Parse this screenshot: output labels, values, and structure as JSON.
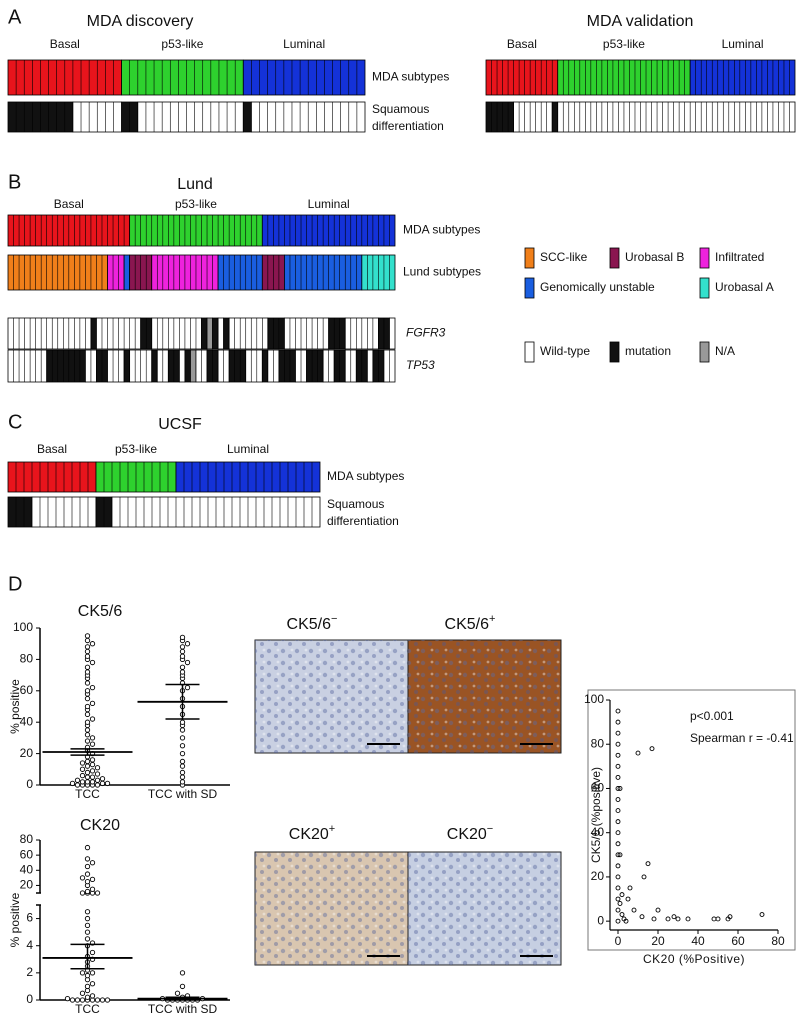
{
  "panel_labels": [
    "A",
    "B",
    "C",
    "D"
  ],
  "heatmaps": [
    {
      "title": "MDA discovery",
      "groups": [
        "Basal",
        "p53-like",
        "Luminal"
      ],
      "rows": [
        {
          "label": "MDA subtypes",
          "runs": [
            {
              "color": "#e8141c",
              "count": 14
            },
            {
              "color": "#2ed12e",
              "count": 15
            },
            {
              "color": "#1432d8",
              "count": 15
            }
          ]
        },
        {
          "label": [
            "Squamous",
            "differentiation"
          ],
          "runs": [
            {
              "color": "#111111",
              "count": 8
            },
            {
              "color": "#ffffff",
              "count": 6
            },
            {
              "color": "#111111",
              "count": 2
            },
            {
              "color": "#ffffff",
              "count": 13
            },
            {
              "color": "#111111",
              "count": 1
            },
            {
              "color": "#ffffff",
              "count": 14
            }
          ]
        }
      ]
    },
    {
      "title": "MDA validation",
      "groups": [
        "Basal",
        "p53-like",
        "Luminal"
      ],
      "rows": [
        {
          "runs": [
            {
              "color": "#e8141c",
              "count": 13
            },
            {
              "color": "#2ed12e",
              "count": 24
            },
            {
              "color": "#1432d8",
              "count": 19
            }
          ]
        },
        {
          "runs": [
            {
              "color": "#111111",
              "count": 5
            },
            {
              "color": "#ffffff",
              "count": 7
            },
            {
              "color": "#111111",
              "count": 1
            },
            {
              "color": "#ffffff",
              "count": 43
            }
          ]
        }
      ]
    },
    {
      "title": "Lund",
      "groups": [
        "Basal",
        "p53-like",
        "Luminal"
      ],
      "rows": [
        {
          "label": "MDA subtypes",
          "runs": [
            {
              "color": "#e8141c",
              "count": 22
            },
            {
              "color": "#2ed12e",
              "count": 24
            },
            {
              "color": "#1432d8",
              "count": 24
            }
          ]
        },
        {
          "label": "Lund subtypes",
          "runs": [
            {
              "color": "#f07f1a",
              "count": 18
            },
            {
              "color": "#ee22dd",
              "count": 3
            },
            {
              "color": "#1a5ee0",
              "count": 1
            },
            {
              "color": "#8a1650",
              "count": 4
            },
            {
              "color": "#ee22dd",
              "count": 12
            },
            {
              "color": "#1a5ee0",
              "count": 8
            },
            {
              "color": "#8a1650",
              "count": 4
            },
            {
              "color": "#1a5ee0",
              "count": 14
            },
            {
              "color": "#33e0cc",
              "count": 6
            }
          ]
        },
        {
          "label": "FGFR3",
          "italic": true,
          "runs": [
            {
              "color": "#ffffff",
              "count": 15
            },
            {
              "color": "#111111",
              "count": 1
            },
            {
              "color": "#ffffff",
              "count": 8
            },
            {
              "color": "#111111",
              "count": 2
            },
            {
              "color": "#ffffff",
              "count": 9
            },
            {
              "color": "#111111",
              "count": 1
            },
            {
              "color": "#999999",
              "count": 1
            },
            {
              "color": "#111111",
              "count": 1
            },
            {
              "color": "#ffffff",
              "count": 1
            },
            {
              "color": "#111111",
              "count": 1
            },
            {
              "color": "#ffffff",
              "count": 7
            },
            {
              "color": "#111111",
              "count": 3
            },
            {
              "color": "#ffffff",
              "count": 8
            },
            {
              "color": "#111111",
              "count": 3
            },
            {
              "color": "#ffffff",
              "count": 6
            },
            {
              "color": "#111111",
              "count": 2
            },
            {
              "color": "#ffffff",
              "count": 1
            }
          ]
        },
        {
          "label": "TP53",
          "italic": true,
          "runs": [
            {
              "color": "#ffffff",
              "count": 7
            },
            {
              "color": "#111111",
              "count": 7
            },
            {
              "color": "#ffffff",
              "count": 2
            },
            {
              "color": "#111111",
              "count": 2
            },
            {
              "color": "#ffffff",
              "count": 3
            },
            {
              "color": "#111111",
              "count": 1
            },
            {
              "color": "#ffffff",
              "count": 4
            },
            {
              "color": "#111111",
              "count": 1
            },
            {
              "color": "#ffffff",
              "count": 2
            },
            {
              "color": "#111111",
              "count": 2
            },
            {
              "color": "#ffffff",
              "count": 1
            },
            {
              "color": "#111111",
              "count": 1
            },
            {
              "color": "#999999",
              "count": 1
            },
            {
              "color": "#ffffff",
              "count": 2
            },
            {
              "color": "#111111",
              "count": 2
            },
            {
              "color": "#ffffff",
              "count": 2
            },
            {
              "color": "#111111",
              "count": 3
            },
            {
              "color": "#ffffff",
              "count": 3
            },
            {
              "color": "#111111",
              "count": 1
            },
            {
              "color": "#ffffff",
              "count": 2
            },
            {
              "color": "#111111",
              "count": 3
            },
            {
              "color": "#ffffff",
              "count": 2
            },
            {
              "color": "#111111",
              "count": 3
            },
            {
              "color": "#ffffff",
              "count": 2
            },
            {
              "color": "#111111",
              "count": 2
            },
            {
              "color": "#ffffff",
              "count": 2
            },
            {
              "color": "#111111",
              "count": 2
            },
            {
              "color": "#ffffff",
              "count": 1
            },
            {
              "color": "#111111",
              "count": 2
            },
            {
              "color": "#ffffff",
              "count": 2
            }
          ]
        }
      ]
    },
    {
      "title": "UCSF",
      "groups": [
        "Basal",
        "p53-like",
        "Luminal"
      ],
      "rows": [
        {
          "label": "MDA subtypes",
          "runs": [
            {
              "color": "#e8141c",
              "count": 11
            },
            {
              "color": "#2ed12e",
              "count": 10
            },
            {
              "color": "#1432d8",
              "count": 18
            }
          ]
        },
        {
          "label": [
            "Squamous",
            "differentiation"
          ],
          "runs": [
            {
              "color": "#111111",
              "count": 3
            },
            {
              "color": "#ffffff",
              "count": 8
            },
            {
              "color": "#111111",
              "count": 2
            },
            {
              "color": "#ffffff",
              "count": 26
            }
          ]
        }
      ]
    }
  ],
  "legends": [
    [
      {
        "label": "SCC-like",
        "color": "#f07f1a"
      },
      {
        "label": "Urobasal B",
        "color": "#8a1650"
      },
      {
        "label": "Infiltrated",
        "color": "#ee22dd"
      },
      {
        "label": "Genomically unstable",
        "color": "#1a5ee0"
      },
      {
        "label": "Urobasal A",
        "color": "#33e0cc"
      }
    ],
    [
      {
        "label": "Wild-type",
        "color": "#ffffff"
      },
      {
        "label": "mutation",
        "color": "#111111"
      },
      {
        "label": "N/A",
        "color": "#999999"
      }
    ]
  ],
  "micrographs": [
    {
      "label": "CK5/6",
      "sup": "−",
      "color": "#c9d0e2"
    },
    {
      "label": "CK5/6",
      "sup": "+",
      "color": "#9a5424"
    },
    {
      "label": "CK20",
      "sup": "+",
      "color": "#d9c6b0"
    },
    {
      "label": "CK20",
      "sup": "−",
      "color": "#c6cfe2"
    }
  ],
  "chart_data": [
    {
      "type": "dot",
      "title": "CK5/6",
      "ylabel": "% positive",
      "categories": [
        "TCC",
        "TCC with SD"
      ],
      "ylim": [
        0,
        100
      ],
      "yticks": [
        0,
        20,
        40,
        60,
        80,
        100
      ],
      "groups": [
        {
          "values": [
            0,
            0,
            0,
            0,
            0,
            1,
            1,
            1,
            2,
            2,
            2,
            3,
            3,
            4,
            5,
            5,
            6,
            7,
            8,
            9,
            10,
            11,
            12,
            13,
            14,
            15,
            16,
            18,
            20,
            22,
            24,
            26,
            28,
            30,
            32,
            35,
            38,
            40,
            42,
            45,
            48,
            50,
            52,
            55,
            58,
            60,
            62,
            65,
            68,
            70,
            72,
            75,
            78,
            80,
            82,
            85,
            88,
            90,
            92,
            95
          ],
          "mean": 21,
          "error_bar": [
            19,
            23
          ]
        },
        {
          "values": [
            0,
            2,
            5,
            8,
            12,
            15,
            20,
            25,
            30,
            35,
            38,
            40,
            45,
            50,
            55,
            60,
            62,
            65,
            68,
            70,
            72,
            75,
            78,
            80,
            82,
            85,
            88,
            90,
            92,
            94
          ],
          "mean": 53,
          "error_bar": [
            42,
            64
          ]
        }
      ]
    },
    {
      "type": "dot",
      "title": "CK20",
      "ylabel": "% positive",
      "categories": [
        "TCC",
        "TCC with SD"
      ],
      "ylim": [
        0,
        80
      ],
      "ybreak": [
        7,
        10
      ],
      "yticks": [
        0,
        2,
        4,
        6,
        20,
        40,
        60,
        80
      ],
      "groups": [
        {
          "values": [
            0,
            0,
            0,
            0,
            0,
            0,
            0,
            0,
            0.1,
            0.2,
            0.3,
            0.5,
            0.7,
            1,
            1.2,
            1.5,
            1.8,
            2,
            2,
            2.2,
            2.5,
            2.8,
            3,
            3.2,
            3.5,
            4,
            4.2,
            4.5,
            5,
            5.5,
            6,
            6.5,
            10,
            10,
            10,
            10,
            12,
            15,
            20,
            25,
            28,
            30,
            35,
            45,
            50,
            55,
            70
          ],
          "mean": 3.1,
          "error_bar": [
            2.3,
            4.1
          ]
        },
        {
          "values": [
            0,
            0,
            0,
            0,
            0,
            0,
            0,
            0.1,
            0.1,
            0.2,
            0.3,
            0.5,
            1,
            2
          ],
          "mean": 0.1,
          "error_bar": [
            0,
            0.2
          ]
        }
      ]
    },
    {
      "type": "scatter",
      "xlabel": "CK20 (%Positive)",
      "ylabel": "CK5/6 (%positive)",
      "annotations": [
        "p<0.001",
        "Spearman r = -0.41"
      ],
      "xlim": [
        -4,
        80
      ],
      "ylim": [
        -4,
        100
      ],
      "xticks": [
        0,
        20,
        40,
        60,
        80
      ],
      "yticks": [
        0,
        20,
        40,
        60,
        80,
        100
      ],
      "x": [
        0,
        0,
        0,
        0,
        0,
        0,
        0,
        0,
        0,
        0,
        0,
        0,
        0,
        0,
        0,
        0,
        0,
        0,
        0,
        0,
        1,
        1,
        1,
        2,
        2,
        3,
        5,
        8,
        10,
        13,
        15,
        17,
        12,
        20,
        25,
        28,
        30,
        35,
        48,
        50,
        55,
        56,
        72,
        18,
        6,
        4
      ],
      "y": [
        95,
        90,
        85,
        80,
        75,
        70,
        65,
        60,
        55,
        50,
        45,
        40,
        35,
        30,
        25,
        20,
        15,
        10,
        5,
        0,
        60,
        30,
        8,
        3,
        12,
        1,
        10,
        5,
        76,
        20,
        26,
        78,
        2,
        5,
        1,
        2,
        1,
        1,
        1,
        1,
        1,
        2,
        3,
        1,
        15,
        0
      ]
    }
  ]
}
